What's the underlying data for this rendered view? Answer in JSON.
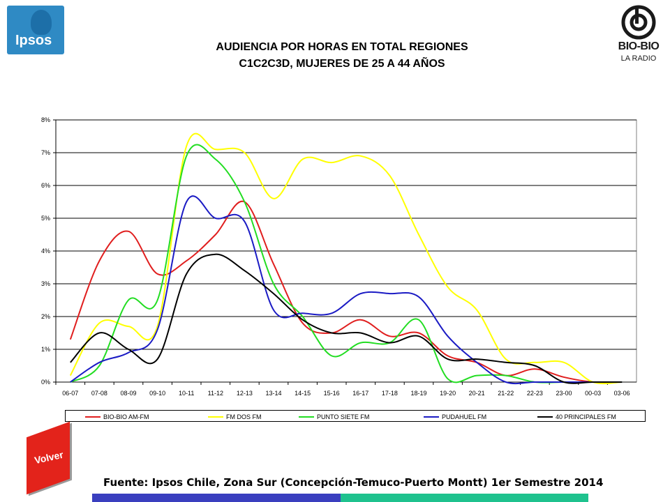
{
  "header": {
    "title_line1": "AUDIENCIA POR HORAS EN TOTAL REGIONES",
    "title_line2": "C1C2C3D, MUJERES DE 25 A 44 AÑOS",
    "logo_left": "Ipsos",
    "logo_right_name": "BIO-BIO",
    "logo_right_sub": "LA RADIO"
  },
  "footer": {
    "volver_label": "Volver",
    "source": "Fuente: Ipsos Chile, Zona Sur (Concepción-Temuco-Puerto Montt) 1er Semestre 2014"
  },
  "chart_data": {
    "type": "line",
    "categories": [
      "06-07",
      "07-08",
      "08-09",
      "09-10",
      "10-11",
      "11-12",
      "12-13",
      "13-14",
      "14-15",
      "15-16",
      "16-17",
      "17-18",
      "18-19",
      "19-20",
      "20-21",
      "21-22",
      "22-23",
      "23-00",
      "00-03",
      "03-06"
    ],
    "y_ticks": [
      "0%",
      "1%",
      "2%",
      "3%",
      "4%",
      "5%",
      "6%",
      "7%",
      "8%"
    ],
    "ylim": [
      0,
      8
    ],
    "ylabel": "",
    "xlabel": "",
    "grid": true,
    "legend_position": "bottom",
    "series": [
      {
        "name": "BIO-BIO AM-FM",
        "color": "#e01e1e",
        "values": [
          1.3,
          3.7,
          4.6,
          3.3,
          3.7,
          4.5,
          5.5,
          3.6,
          1.8,
          1.5,
          1.9,
          1.4,
          1.5,
          0.8,
          0.6,
          0.2,
          0.4,
          0.15,
          0.0,
          0.0
        ]
      },
      {
        "name": "FM DOS FM",
        "color": "#ffff00",
        "values": [
          0.2,
          1.8,
          1.7,
          1.7,
          7.2,
          7.1,
          7.0,
          5.6,
          6.8,
          6.7,
          6.9,
          6.3,
          4.5,
          2.9,
          2.2,
          0.7,
          0.6,
          0.6,
          0.0,
          0.0
        ]
      },
      {
        "name": "PUNTO SIETE FM",
        "color": "#22dd22",
        "values": [
          0.0,
          0.5,
          2.5,
          2.5,
          6.9,
          6.8,
          5.5,
          3.0,
          2.0,
          0.8,
          1.2,
          1.2,
          1.9,
          0.1,
          0.2,
          0.2,
          0.0,
          0.0,
          0.0,
          0.0
        ]
      },
      {
        "name": "PUDAHUEL FM",
        "color": "#1b1bc4",
        "values": [
          0.0,
          0.6,
          0.9,
          1.6,
          5.5,
          5.0,
          4.9,
          2.2,
          2.1,
          2.1,
          2.7,
          2.7,
          2.6,
          1.4,
          0.6,
          0.0,
          0.0,
          0.0,
          0.0,
          0.0
        ]
      },
      {
        "name": "40 PRINCIPALES FM",
        "color": "#000000",
        "values": [
          0.6,
          1.5,
          1.0,
          0.7,
          3.3,
          3.9,
          3.4,
          2.7,
          1.9,
          1.5,
          1.5,
          1.2,
          1.4,
          0.7,
          0.7,
          0.6,
          0.5,
          0.0,
          0.0,
          0.0
        ]
      }
    ]
  }
}
